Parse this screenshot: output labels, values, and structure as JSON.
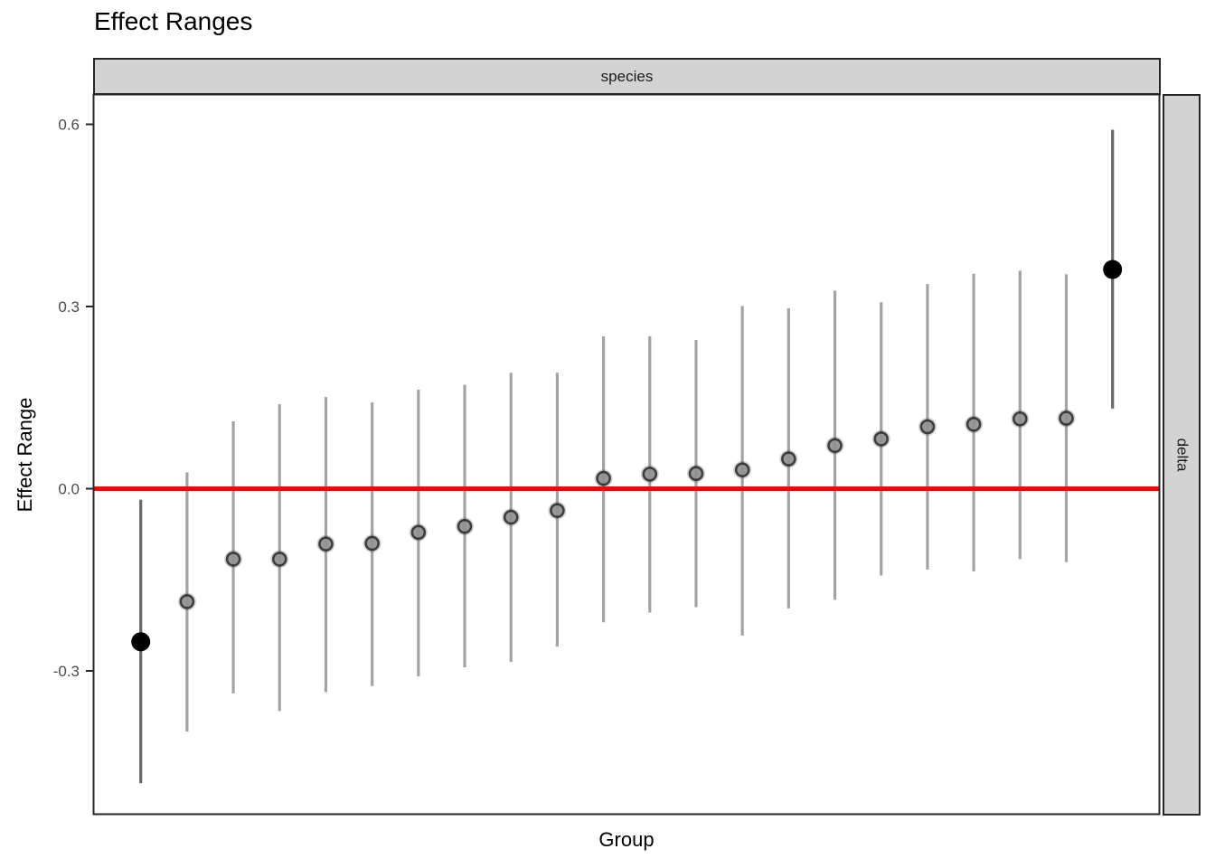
{
  "chart_data": {
    "type": "scatter",
    "subtype": "coefficient-plot-with-interval-bars",
    "title": "Effect Ranges",
    "xlabel": "Group",
    "ylabel": "Effect Range",
    "facet_top_label": "species",
    "facet_right_label": "delta",
    "x_axis_note": "22 unlabeled groups ordered by estimate",
    "y_ticks": [
      -0.3,
      0.0,
      0.3,
      0.6
    ],
    "ylim": [
      -0.54,
      0.65
    ],
    "grid": "off",
    "legend": "none",
    "reference_line": {
      "y": 0.0,
      "color": "#FF0000"
    },
    "points": [
      {
        "group": 1,
        "estimate": -0.252,
        "lower": -0.485,
        "upper": -0.018,
        "significant": true
      },
      {
        "group": 2,
        "estimate": -0.186,
        "lower": -0.4,
        "upper": 0.027,
        "significant": false
      },
      {
        "group": 3,
        "estimate": -0.116,
        "lower": -0.337,
        "upper": 0.111,
        "significant": false
      },
      {
        "group": 4,
        "estimate": -0.116,
        "lower": -0.366,
        "upper": 0.139,
        "significant": false
      },
      {
        "group": 5,
        "estimate": -0.091,
        "lower": -0.335,
        "upper": 0.151,
        "significant": false
      },
      {
        "group": 6,
        "estimate": -0.09,
        "lower": -0.325,
        "upper": 0.142,
        "significant": false
      },
      {
        "group": 7,
        "estimate": -0.072,
        "lower": -0.309,
        "upper": 0.163,
        "significant": false
      },
      {
        "group": 8,
        "estimate": -0.062,
        "lower": -0.294,
        "upper": 0.171,
        "significant": false
      },
      {
        "group": 9,
        "estimate": -0.047,
        "lower": -0.285,
        "upper": 0.191,
        "significant": false
      },
      {
        "group": 10,
        "estimate": -0.036,
        "lower": -0.26,
        "upper": 0.191,
        "significant": false
      },
      {
        "group": 11,
        "estimate": 0.017,
        "lower": -0.22,
        "upper": 0.251,
        "significant": false
      },
      {
        "group": 12,
        "estimate": 0.024,
        "lower": -0.204,
        "upper": 0.251,
        "significant": false
      },
      {
        "group": 13,
        "estimate": 0.025,
        "lower": -0.195,
        "upper": 0.245,
        "significant": false
      },
      {
        "group": 14,
        "estimate": 0.031,
        "lower": -0.242,
        "upper": 0.301,
        "significant": false
      },
      {
        "group": 15,
        "estimate": 0.049,
        "lower": -0.197,
        "upper": 0.297,
        "significant": false
      },
      {
        "group": 16,
        "estimate": 0.071,
        "lower": -0.183,
        "upper": 0.326,
        "significant": false
      },
      {
        "group": 17,
        "estimate": 0.082,
        "lower": -0.143,
        "upper": 0.307,
        "significant": false
      },
      {
        "group": 18,
        "estimate": 0.102,
        "lower": -0.133,
        "upper": 0.337,
        "significant": false
      },
      {
        "group": 19,
        "estimate": 0.106,
        "lower": -0.136,
        "upper": 0.354,
        "significant": false
      },
      {
        "group": 20,
        "estimate": 0.115,
        "lower": -0.116,
        "upper": 0.359,
        "significant": false
      },
      {
        "group": 21,
        "estimate": 0.116,
        "lower": -0.121,
        "upper": 0.353,
        "significant": false
      },
      {
        "group": 22,
        "estimate": 0.361,
        "lower": 0.132,
        "upper": 0.591,
        "significant": true
      }
    ]
  },
  "style": {
    "reference_line_color": "#FF0000",
    "bar_color": "#a3a3a3",
    "bar_color_significant": "#696969",
    "point_fill": "#939393",
    "point_stroke": "#2e2e2e",
    "significant_point_color": "#000000",
    "strip_fill": "#d3d3d3",
    "panel_border_color": "#262626",
    "tick_label_color": "#4d4d4d",
    "background": "#ffffff"
  }
}
